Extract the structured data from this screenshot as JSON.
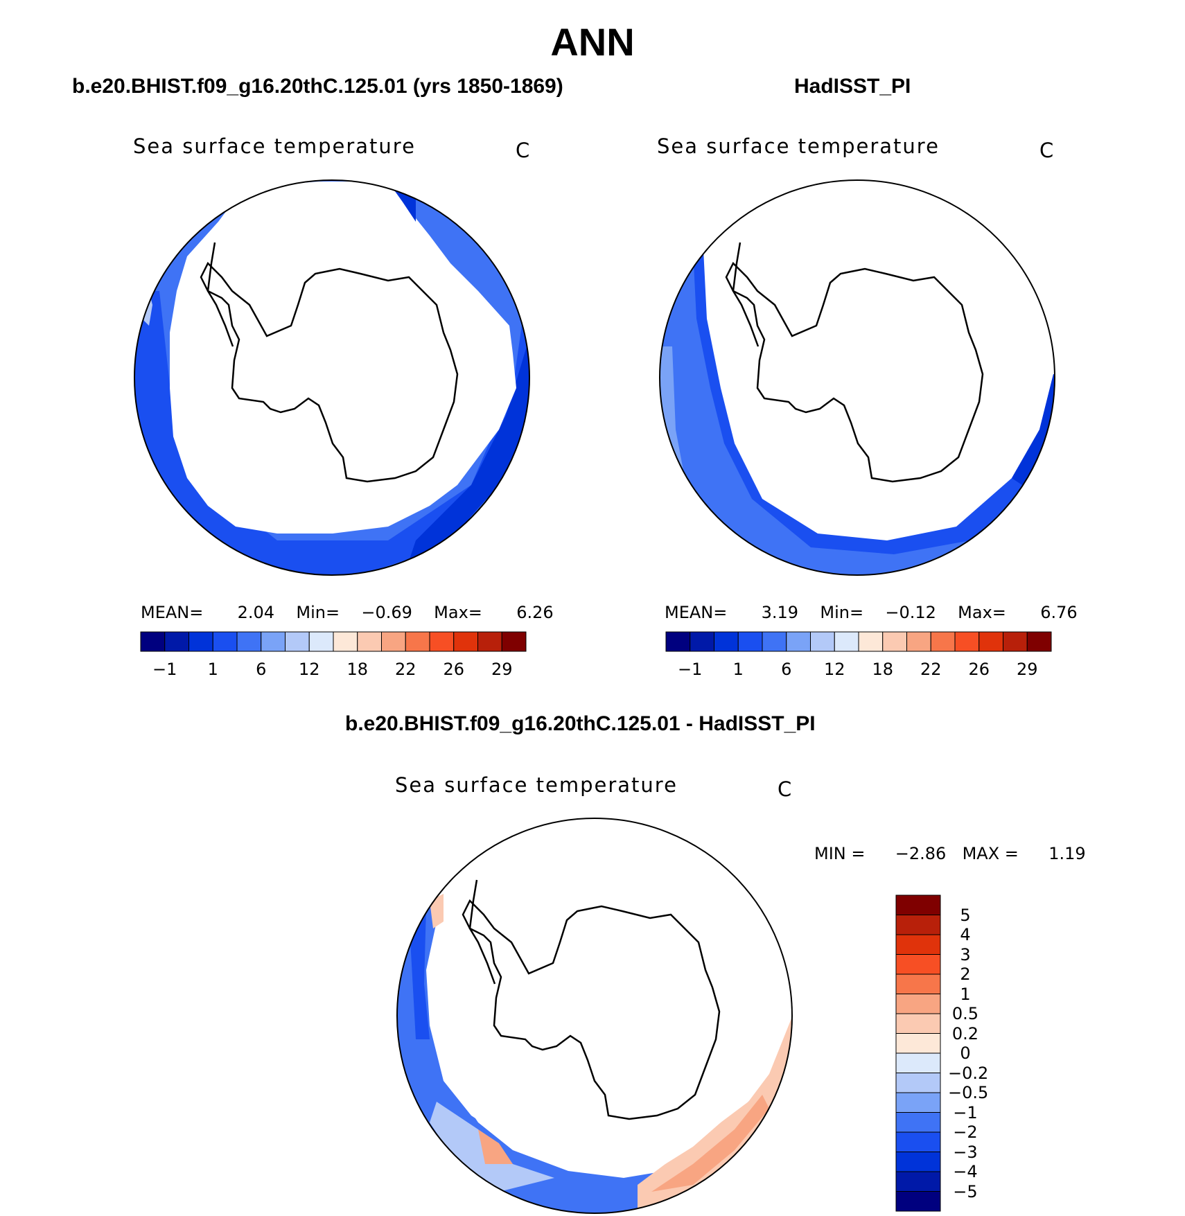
{
  "title": "ANN",
  "panels": [
    {
      "id": "model",
      "case_title": "b.e20.BHIST.f09_g16.20thC.125.01 (yrs 1850-1869)",
      "var_title": "Sea surface temperature",
      "units": "C",
      "stats": {
        "mean_label": "MEAN=",
        "mean": "2.04",
        "min_label": "Min=",
        "min": "−0.69",
        "max_label": "Max=",
        "max": "6.26"
      },
      "colorbar_ticks": [
        "−1",
        "1",
        "6",
        "12",
        "18",
        "22",
        "26",
        "29"
      ]
    },
    {
      "id": "obs",
      "case_title": "HadISST_PI",
      "var_title": "Sea surface temperature",
      "units": "C",
      "stats": {
        "mean_label": "MEAN=",
        "mean": "3.19",
        "min_label": "Min=",
        "min": "−0.12",
        "max_label": "Max=",
        "max": "6.76"
      },
      "colorbar_ticks": [
        "−1",
        "1",
        "6",
        "12",
        "18",
        "22",
        "26",
        "29"
      ]
    },
    {
      "id": "diff",
      "case_title": "b.e20.BHIST.f09_g16.20thC.125.01 - HadISST_PI",
      "var_title": "Sea surface temperature",
      "units": "C",
      "stats": {
        "min_label": "MIN =",
        "min": "−2.86",
        "max_label": "MAX =",
        "max": "1.19"
      },
      "colorbar_ticks": [
        "5",
        "4",
        "3",
        "2",
        "1",
        "0.5",
        "0.2",
        "0",
        "−0.2",
        "−0.5",
        "−1",
        "−2",
        "−3",
        "−4",
        "−5"
      ]
    }
  ],
  "colors": {
    "abs_palette": [
      "#00007f",
      "#0019a8",
      "#0033d9",
      "#1a4ff0",
      "#3f73f5",
      "#7aa3f7",
      "#b3c9f8",
      "#dce9fb",
      "#fde8d8",
      "#fbcab2",
      "#f8a582",
      "#f7764a",
      "#f74f24",
      "#e0330b",
      "#b8200a",
      "#7f0000"
    ],
    "diff_palette": [
      "#7f0000",
      "#b8200a",
      "#e0330b",
      "#f74f24",
      "#f7764a",
      "#f8a582",
      "#fbcab2",
      "#fde8d8",
      "#dce9fb",
      "#b3c9f8",
      "#7aa3f7",
      "#3f73f5",
      "#1a4ff0",
      "#0033d9",
      "#0019a8",
      "#00007f"
    ]
  },
  "chart_data": [
    {
      "type": "heatmap",
      "projection": "south polar stereographic",
      "title": "Sea surface temperature",
      "levels": [
        -1,
        1,
        6,
        12,
        18,
        22,
        26,
        29
      ],
      "mean": 2.04,
      "min": -0.69,
      "max": 6.26
    },
    {
      "type": "heatmap",
      "projection": "south polar stereographic",
      "title": "Sea surface temperature",
      "levels": [
        -1,
        1,
        6,
        12,
        18,
        22,
        26,
        29
      ],
      "mean": 3.19,
      "min": -0.12,
      "max": 6.76
    },
    {
      "type": "heatmap",
      "projection": "south polar stereographic",
      "title": "Sea surface temperature",
      "levels": [
        -5,
        -4,
        -3,
        -2,
        -1,
        -0.5,
        -0.2,
        0,
        0.2,
        0.5,
        1,
        2,
        3,
        4,
        5
      ],
      "min": -2.86,
      "max": 1.19
    }
  ]
}
